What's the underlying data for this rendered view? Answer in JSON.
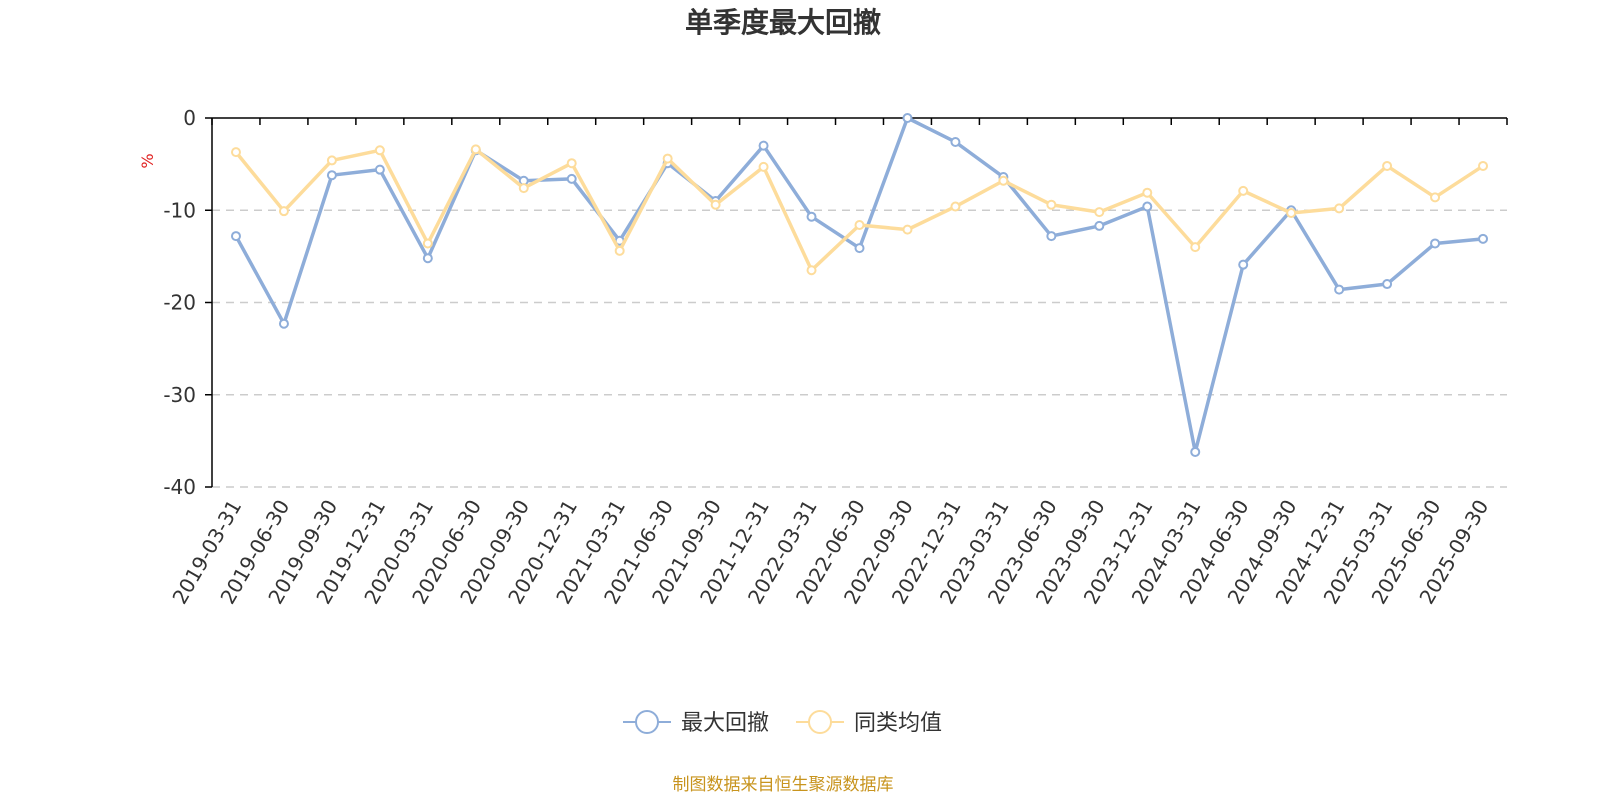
{
  "chart_data": {
    "type": "line",
    "title": "单季度最大回撤",
    "ylabel": "%",
    "ylim": [
      -40,
      0
    ],
    "yticks": [
      0,
      -10,
      -20,
      -30,
      -40
    ],
    "grid": true,
    "legend_position": "bottom",
    "categories": [
      "2019-03-31",
      "2019-06-30",
      "2019-09-30",
      "2019-12-31",
      "2020-03-31",
      "2020-06-30",
      "2020-09-30",
      "2020-12-31",
      "2021-03-31",
      "2021-06-30",
      "2021-09-30",
      "2021-12-31",
      "2022-03-31",
      "2022-06-30",
      "2022-09-30",
      "2022-12-31",
      "2023-03-31",
      "2023-06-30",
      "2023-09-30",
      "2023-12-31",
      "2024-03-31",
      "2024-06-30",
      "2024-09-30",
      "2024-12-31",
      "2025-03-31",
      "2025-06-30",
      "2025-09-30"
    ],
    "series": [
      {
        "name": "最大回撤",
        "color": "#8eadd9",
        "values": [
          -12.8,
          -22.3,
          -6.2,
          -5.6,
          -15.2,
          -3.5,
          -6.8,
          -6.6,
          -13.3,
          -4.9,
          -9.0,
          -3.0,
          -10.7,
          -14.1,
          0.0,
          -2.6,
          -6.4,
          -12.8,
          -11.7,
          -9.6,
          -36.2,
          -15.9,
          -10.0,
          -18.6,
          -18.0,
          -13.6,
          -13.1
        ]
      },
      {
        "name": "同类均值",
        "color": "#fddc9b",
        "values": [
          -3.7,
          -10.1,
          -4.6,
          -3.5,
          -13.6,
          -3.4,
          -7.6,
          -4.9,
          -14.4,
          -4.4,
          -9.4,
          -5.3,
          -16.5,
          -11.6,
          -12.1,
          -9.6,
          -6.8,
          -9.4,
          -10.2,
          -8.1,
          -14.0,
          -7.9,
          -10.3,
          -9.8,
          -5.2,
          -8.6,
          -5.2
        ]
      }
    ],
    "source": "制图数据来自恒生聚源数据库"
  }
}
